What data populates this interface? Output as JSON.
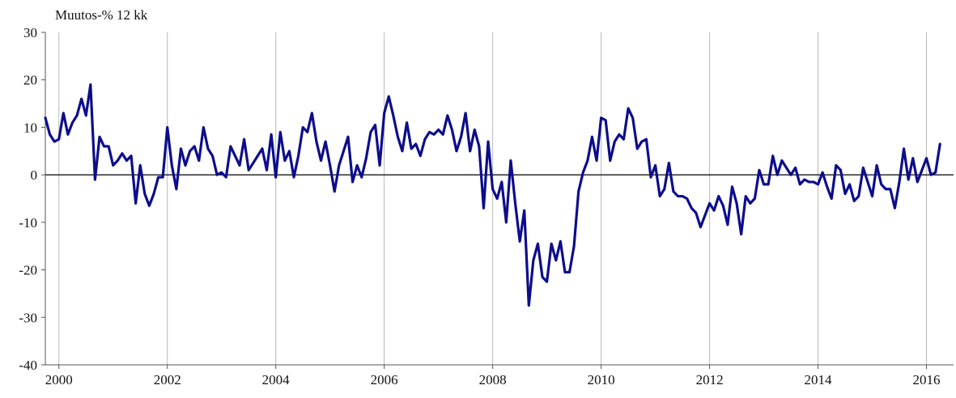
{
  "chart_data": {
    "type": "line",
    "title": "",
    "ylabel": "Muutos-% 12 kk",
    "xlabel": "",
    "ylim": [
      -40,
      30
    ],
    "yticks": [
      30,
      20,
      10,
      0,
      -10,
      -20,
      -30,
      -40
    ],
    "xlim": [
      1999.75,
      2016.5
    ],
    "xticks": [
      2000,
      2002,
      2004,
      2006,
      2008,
      2010,
      2012,
      2014,
      2016
    ],
    "xtick_labels": [
      "2000",
      "2002",
      "2004",
      "2006",
      "2008",
      "2010",
      "2012",
      "2014",
      "2016"
    ],
    "grid": "vertical",
    "zero_line": true,
    "line_color": "#0d0d8c",
    "series": [
      {
        "x_start": 1999.75,
        "x_step": 0.083333,
        "values": [
          12,
          8.5,
          7,
          7.5,
          13,
          8.5,
          11,
          12.5,
          16,
          12.5,
          19,
          -1,
          8,
          6,
          6,
          2,
          3,
          4.5,
          3,
          4,
          -6,
          2,
          -4,
          -6.5,
          -4,
          -0.5,
          -0.5,
          10,
          2,
          -3,
          5.5,
          2,
          5,
          6,
          3,
          10,
          5.5,
          4,
          0,
          0.5,
          -0.5,
          6,
          4,
          2,
          7.5,
          1,
          2.5,
          4,
          5.5,
          1,
          8.5,
          -0.5,
          9,
          3,
          5,
          -0.5,
          4,
          10,
          9,
          13,
          7,
          3,
          7,
          2,
          -3.5,
          2,
          5,
          8,
          -1.5,
          2,
          -0.5,
          3.5,
          9,
          10.5,
          2,
          13,
          16.5,
          12.5,
          8,
          5,
          11,
          5.5,
          6.5,
          4,
          7.5,
          9,
          8.5,
          9.5,
          8.5,
          12.5,
          9.5,
          5,
          8,
          13,
          5,
          9.5,
          6,
          -7,
          7,
          -3,
          -5,
          -1.5,
          -10,
          3,
          -6,
          -14,
          -7.5,
          -27.5,
          -18,
          -14.5,
          -21.5,
          -22.5,
          -14.5,
          -18,
          -14,
          -20.5,
          -20.5,
          -15,
          -3.5,
          0.5,
          3,
          8,
          3,
          12,
          11.5,
          3,
          7,
          8.5,
          7.5,
          14,
          12,
          5.5,
          7,
          7.5,
          -0.5,
          2,
          -4.5,
          -3,
          2.5,
          -3.5,
          -4.5,
          -4.5,
          -5,
          -7,
          -8,
          -11,
          -8.5,
          -6,
          -7.5,
          -4.5,
          -6.5,
          -10.5,
          -2.5,
          -6,
          -12.5,
          -4.5,
          -6,
          -5,
          1,
          -2,
          -2,
          4,
          0,
          3,
          1.5,
          0,
          1.5,
          -2,
          -1,
          -1.5,
          -1.5,
          -2,
          0.5,
          -2.5,
          -5,
          2,
          1,
          -4,
          -2,
          -5.5,
          -4.5,
          1.5,
          -1.5,
          -4.5,
          2,
          -2,
          -3,
          -3,
          -7,
          -1.5,
          5.5,
          -1,
          3.5,
          -1.5,
          1,
          3.5,
          0,
          0.5,
          6.5
        ]
      }
    ]
  }
}
